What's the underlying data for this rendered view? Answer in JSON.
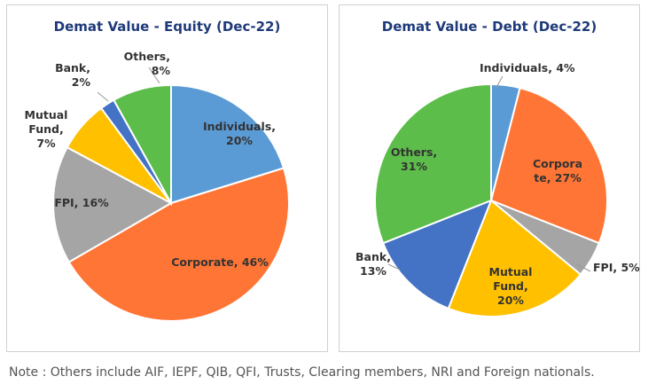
{
  "chart_data": [
    {
      "type": "pie",
      "title": "Demat Value - Equity (Dec-22)",
      "slices": [
        {
          "name": "Individuals",
          "value": 20,
          "color": "#5b9bd5",
          "label_lines": [
            "Individuals,",
            "20%"
          ]
        },
        {
          "name": "Corporate",
          "value": 46,
          "color": "#ff7535",
          "label_lines": [
            "Corporate, 46%"
          ]
        },
        {
          "name": "FPI",
          "value": 16,
          "color": "#a5a5a5",
          "label_lines": [
            "FPI, 16%"
          ]
        },
        {
          "name": "Mutual Fund",
          "value": 7,
          "color": "#ffc000",
          "label_lines": [
            "Mutual",
            "Fund,",
            "7%"
          ]
        },
        {
          "name": "Bank",
          "value": 2,
          "color": "#4472c4",
          "label_lines": [
            "Bank,",
            "2%"
          ]
        },
        {
          "name": "Others",
          "value": 8,
          "color": "#5cbd4a",
          "label_lines": [
            "Others,",
            "8%"
          ]
        }
      ]
    },
    {
      "type": "pie",
      "title": "Demat Value - Debt (Dec-22)",
      "slices": [
        {
          "name": "Individuals",
          "value": 4,
          "color": "#5b9bd5",
          "label_lines": [
            "Individuals, 4%"
          ]
        },
        {
          "name": "Corporate",
          "value": 27,
          "color": "#ff7535",
          "label_lines": [
            "Corpora",
            "te, 27%"
          ]
        },
        {
          "name": "FPI",
          "value": 5,
          "color": "#a5a5a5",
          "label_lines": [
            "FPI, 5%"
          ]
        },
        {
          "name": "Mutual Fund",
          "value": 20,
          "color": "#ffc000",
          "label_lines": [
            "Mutual",
            "Fund,",
            "20%"
          ]
        },
        {
          "name": "Bank",
          "value": 13,
          "color": "#4472c4",
          "label_lines": [
            "Bank,",
            "13%"
          ]
        },
        {
          "name": "Others",
          "value": 31,
          "color": "#5cbd4a",
          "label_lines": [
            "Others,",
            "31%"
          ]
        }
      ]
    }
  ],
  "note": "Note : Others include AIF, IEPF, QIB, QFI, Trusts, Clearing members, NRI and Foreign nationals."
}
